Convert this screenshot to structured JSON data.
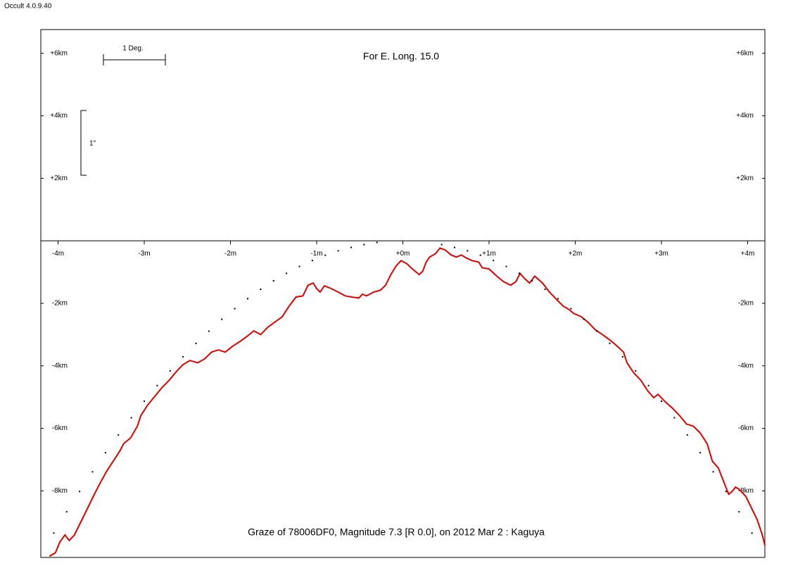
{
  "app_title": "Occult 4.0.9.40",
  "chart_data": {
    "type": "line",
    "title": "For E. Long. 15.0",
    "subtitle": "Graze of  78006DF0,  Magnitude 7.3 [R 0.0],  on 2012 Mar  2  :  Kaguya",
    "scale_labels": [
      "1 Deg.",
      "1\""
    ],
    "xlim": [
      -4.2,
      4.2
    ],
    "ylim": [
      -10.13,
      6.76
    ],
    "xticks": [
      {
        "value": -4,
        "label": "-4m"
      },
      {
        "value": -3,
        "label": "-3m"
      },
      {
        "value": -2,
        "label": "-2m"
      },
      {
        "value": -1,
        "label": "-1m"
      },
      {
        "value": 0,
        "label": "+0m"
      },
      {
        "value": 1,
        "label": "+1m"
      },
      {
        "value": 2,
        "label": "+2m"
      },
      {
        "value": 3,
        "label": "+3m"
      },
      {
        "value": 4,
        "label": "+4m"
      }
    ],
    "yticks": [
      {
        "value": 6,
        "label": "+6km"
      },
      {
        "value": 4,
        "label": "+4km"
      },
      {
        "value": 2,
        "label": "+2km"
      },
      {
        "value": -2,
        "label": "-2km"
      },
      {
        "value": -4,
        "label": "-4km"
      },
      {
        "value": -6,
        "label": "-6km"
      },
      {
        "value": -8,
        "label": "-8km"
      }
    ],
    "series": [
      {
        "color": "#e00000",
        "style": "line",
        "x": [
          -4.1,
          -4.03,
          -3.98,
          -3.92,
          -3.87,
          -3.81,
          -3.73,
          -3.65,
          -3.57,
          -3.53,
          -3.44,
          -3.36,
          -3.28,
          -3.24,
          -3.16,
          -3.08,
          -3.04,
          -2.96,
          -2.87,
          -2.79,
          -2.71,
          -2.63,
          -2.55,
          -2.47,
          -2.38,
          -2.3,
          -2.22,
          -2.14,
          -2.06,
          -1.98,
          -1.89,
          -1.81,
          -1.73,
          -1.65,
          -1.57,
          -1.49,
          -1.4,
          -1.32,
          -1.24,
          -1.16,
          -1.1,
          -1.04,
          -1.0,
          -0.96,
          -0.91,
          -0.83,
          -0.75,
          -0.67,
          -0.59,
          -0.51,
          -0.47,
          -0.42,
          -0.34,
          -0.26,
          -0.2,
          -0.14,
          -0.08,
          -0.02,
          0.05,
          0.11,
          0.19,
          0.23,
          0.27,
          0.31,
          0.38,
          0.43,
          0.49,
          0.56,
          0.62,
          0.68,
          0.73,
          0.8,
          0.88,
          0.92,
          1.0,
          1.09,
          1.17,
          1.25,
          1.31,
          1.36,
          1.41,
          1.47,
          1.53,
          1.62,
          1.7,
          1.78,
          1.86,
          1.93,
          1.98,
          2.07,
          2.15,
          2.23,
          2.31,
          2.39,
          2.47,
          2.56,
          2.6,
          2.68,
          2.76,
          2.84,
          2.91,
          2.96,
          3.04,
          3.13,
          3.21,
          3.29,
          3.37,
          3.45,
          3.53,
          3.59,
          3.66,
          3.74,
          3.78,
          3.82,
          3.86,
          3.9,
          3.98,
          4.02,
          4.11,
          4.17,
          4.2
        ],
        "values": [
          -10.09,
          -9.98,
          -9.64,
          -9.41,
          -9.59,
          -9.41,
          -8.96,
          -8.51,
          -8.06,
          -7.84,
          -7.39,
          -7.05,
          -6.71,
          -6.49,
          -6.31,
          -5.93,
          -5.59,
          -5.25,
          -4.95,
          -4.68,
          -4.46,
          -4.19,
          -3.96,
          -3.83,
          -3.9,
          -3.78,
          -3.56,
          -3.49,
          -3.56,
          -3.38,
          -3.22,
          -3.06,
          -2.88,
          -3.0,
          -2.77,
          -2.61,
          -2.43,
          -2.09,
          -1.8,
          -1.76,
          -1.42,
          -1.35,
          -1.53,
          -1.64,
          -1.44,
          -1.53,
          -1.64,
          -1.76,
          -1.8,
          -1.83,
          -1.71,
          -1.76,
          -1.64,
          -1.58,
          -1.42,
          -1.08,
          -0.81,
          -0.63,
          -0.74,
          -0.9,
          -1.08,
          -0.97,
          -0.68,
          -0.52,
          -0.41,
          -0.23,
          -0.29,
          -0.45,
          -0.52,
          -0.45,
          -0.54,
          -0.63,
          -0.68,
          -0.86,
          -0.9,
          -1.13,
          -1.31,
          -1.42,
          -1.31,
          -1.04,
          -1.2,
          -1.35,
          -1.13,
          -1.35,
          -1.64,
          -1.87,
          -2.09,
          -2.2,
          -2.32,
          -2.43,
          -2.61,
          -2.84,
          -2.99,
          -3.15,
          -3.33,
          -3.56,
          -3.9,
          -4.23,
          -4.46,
          -4.8,
          -5.02,
          -4.91,
          -5.14,
          -5.36,
          -5.59,
          -5.86,
          -5.93,
          -6.15,
          -6.49,
          -7.05,
          -7.27,
          -7.84,
          -8.11,
          -8.02,
          -7.88,
          -7.95,
          -8.18,
          -8.41,
          -8.92,
          -9.41,
          -9.75
        ]
      },
      {
        "color": "#000000",
        "style": "dots",
        "x": [
          -4.05,
          -3.9,
          -3.75,
          -3.6,
          -3.45,
          -3.3,
          -3.15,
          -3.0,
          -2.85,
          -2.7,
          -2.55,
          -2.4,
          -2.25,
          -2.1,
          -1.95,
          -1.8,
          -1.65,
          -1.5,
          -1.35,
          -1.2,
          -1.05,
          -0.9,
          -0.75,
          -0.6,
          -0.45,
          -0.3,
          0.45,
          0.6,
          0.75,
          0.9,
          1.05,
          1.2,
          1.35,
          1.5,
          1.65,
          1.8,
          1.95,
          2.1,
          2.25,
          2.4,
          2.55,
          2.7,
          2.85,
          3.0,
          3.15,
          3.3,
          3.45,
          3.6,
          3.75,
          3.9,
          4.05
        ],
        "values": [
          -9.35,
          -8.67,
          -8.02,
          -7.39,
          -6.78,
          -6.21,
          -5.66,
          -5.13,
          -4.63,
          -4.16,
          -3.71,
          -3.28,
          -2.89,
          -2.51,
          -2.17,
          -1.85,
          -1.55,
          -1.28,
          -1.04,
          -0.82,
          -0.63,
          -0.46,
          -0.32,
          -0.21,
          -0.12,
          -0.05,
          -0.12,
          -0.21,
          -0.32,
          -0.46,
          -0.63,
          -0.82,
          -1.04,
          -1.28,
          -1.55,
          -1.85,
          -2.17,
          -2.51,
          -2.89,
          -3.28,
          -3.71,
          -4.16,
          -4.63,
          -5.13,
          -5.66,
          -6.21,
          -6.78,
          -7.39,
          -8.02,
          -8.67,
          -9.35
        ]
      }
    ]
  }
}
